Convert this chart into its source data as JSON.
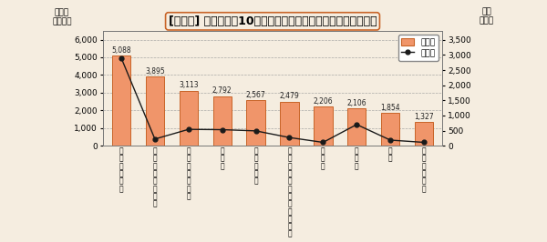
{
  "title": "[雲南市] 費用額上位10疾患（全年齢・男女計・入院＋入院外）",
  "ylabel_left": "費用額\n（万円）",
  "ylabel_right": "件数\n（件）",
  "categories": [
    "高\n血\n圧\n性\n疾\n患",
    "そ\nの\n他\nの\n糖\n尿\n病\n等",
    "そ\nの\n他\nの\n心\n疾\n患",
    "脴\n棘\n塞",
    "虚\n血\n性\n疾\n患",
    "統\n合\n失\n調\n症\n・\n妄\n想\n性\n障\n害\n・",
    "腎\n不\n全",
    "糖\n尿\n病",
    "骨\n折",
    "悪\n性\nリ\nン\nパ\n腫"
  ],
  "bar_values": [
    5088,
    3895,
    3113,
    2792,
    2567,
    2479,
    2206,
    2106,
    1854,
    1327
  ],
  "line_values": [
    2900,
    220,
    540,
    530,
    490,
    270,
    110,
    700,
    185,
    110
  ],
  "bar_color": "#F0956A",
  "bar_edge_color": "#C86428",
  "line_color": "#1a1a1a",
  "background_color": "#F5EDE0",
  "left_ylim": [
    0,
    6500
  ],
  "right_ylim": [
    0,
    3800
  ],
  "left_yticks": [
    0,
    1000,
    2000,
    3000,
    4000,
    5000,
    6000
  ],
  "right_yticks": [
    0,
    500,
    1000,
    1500,
    2000,
    2500,
    3000,
    3500
  ],
  "grid_color": "#999999",
  "legend_bar_label": "費用額",
  "legend_line_label": "件　数",
  "title_fontsize": 9,
  "figsize": [
    6.0,
    2.66
  ],
  "dpi": 100
}
